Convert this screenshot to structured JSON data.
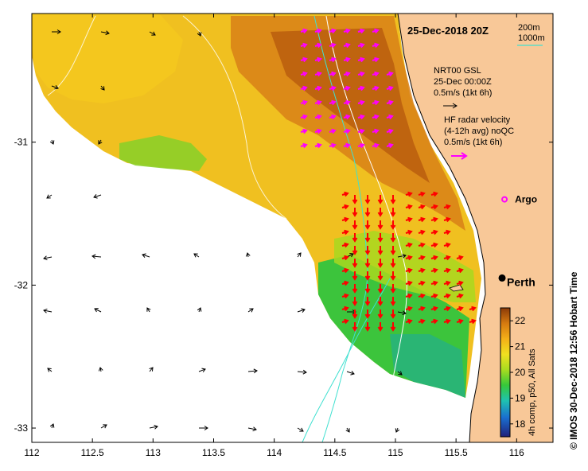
{
  "title": "25-Dec-2018 20Z",
  "axes": {
    "x_ticks": [
      "112",
      "112.5",
      "113",
      "113.5",
      "114",
      "114.5",
      "115",
      "115.5",
      "116"
    ],
    "x_values": [
      112,
      112.5,
      113,
      113.5,
      114,
      114.5,
      115,
      115.5,
      116
    ],
    "y_ticks": [
      "-31",
      "-32",
      "-33"
    ],
    "y_values": [
      -31,
      -32,
      -33
    ],
    "xlim": [
      112,
      116.3
    ],
    "ylim": [
      -33.1,
      -30.1
    ]
  },
  "depth_legend": {
    "label_200": "200m",
    "label_1000": "1000m",
    "color_200": "#ffffff",
    "color_1000": "#40e0d0"
  },
  "legend": {
    "gsl_line1": "NRT00 GSL",
    "gsl_line2": "25-Dec 00:00Z",
    "gsl_line3": "0.5m/s (1kt 6h)",
    "gsl_arrow_color": "#000000",
    "hf_line1": "HF radar velocity",
    "hf_line2": "(4-12h avg) noQC",
    "hf_line3": "0.5m/s (1kt 6h)",
    "hf_arrow_color": "#ff00ff"
  },
  "markers": {
    "argo_label": "Argo",
    "argo_color": "#ff00ff",
    "argo_lon": 115.9,
    "argo_lat": -31.4,
    "perth_label": "Perth",
    "perth_lon": 115.88,
    "perth_lat": -31.95
  },
  "colorbar": {
    "label": "4h comp, p50, All Sats",
    "ticks": [
      "22",
      "21",
      "20",
      "19",
      "18"
    ],
    "tick_values": [
      22,
      21,
      20,
      19,
      18
    ],
    "range": [
      17.5,
      22.5
    ]
  },
  "credit": "© IMOS 30-Dec-2018 12:56 Hobart Time",
  "colors": {
    "land": "#f8c898",
    "ocean_no_data": "#ffffff",
    "red_vectors": "#ff0000",
    "magenta_vectors": "#ff00ff"
  }
}
